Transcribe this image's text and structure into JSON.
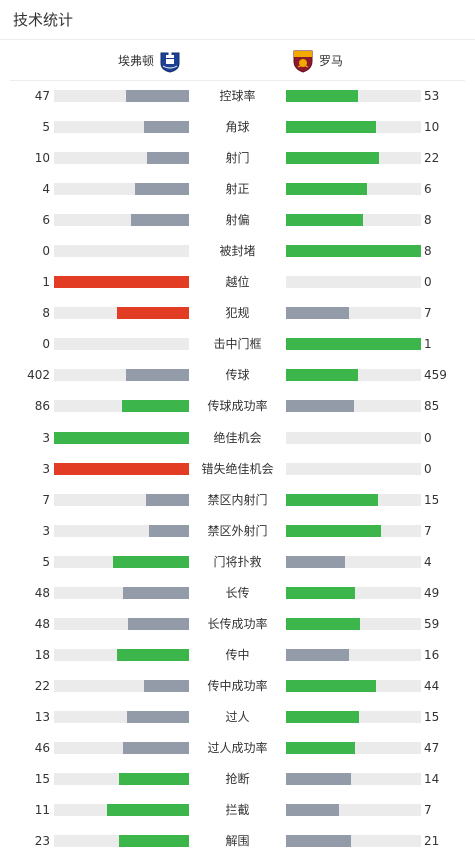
{
  "page": {
    "title": "技术统计"
  },
  "teams": {
    "home": {
      "name": "埃弗顿",
      "crest_icon": "everton-crest-icon"
    },
    "away": {
      "name": "罗马",
      "crest_icon": "roma-crest-icon"
    }
  },
  "colors": {
    "win": "#3cb64a",
    "normal": "#949ba8",
    "alert": "#e23c25",
    "track": "#ebebeb"
  },
  "stats": [
    {
      "label": "控球率",
      "home": "47",
      "away": "53",
      "home_fill": 0.47,
      "away_fill": 0.53,
      "home_color": "normal",
      "away_color": "win"
    },
    {
      "label": "角球",
      "home": "5",
      "away": "10",
      "home_fill": 0.33,
      "away_fill": 0.67,
      "home_color": "normal",
      "away_color": "win"
    },
    {
      "label": "射门",
      "home": "10",
      "away": "22",
      "home_fill": 0.31,
      "away_fill": 0.69,
      "home_color": "normal",
      "away_color": "win"
    },
    {
      "label": "射正",
      "home": "4",
      "away": "6",
      "home_fill": 0.4,
      "away_fill": 0.6,
      "home_color": "normal",
      "away_color": "win"
    },
    {
      "label": "射偏",
      "home": "6",
      "away": "8",
      "home_fill": 0.43,
      "away_fill": 0.57,
      "home_color": "normal",
      "away_color": "win"
    },
    {
      "label": "被封堵",
      "home": "0",
      "away": "8",
      "home_fill": 0,
      "away_fill": 1,
      "home_color": "normal",
      "away_color": "win"
    },
    {
      "label": "越位",
      "home": "1",
      "away": "0",
      "home_fill": 1,
      "away_fill": 0,
      "home_color": "alert",
      "away_color": "normal"
    },
    {
      "label": "犯规",
      "home": "8",
      "away": "7",
      "home_fill": 0.53,
      "away_fill": 0.47,
      "home_color": "alert",
      "away_color": "normal"
    },
    {
      "label": "击中门框",
      "home": "0",
      "away": "1",
      "home_fill": 0,
      "away_fill": 1,
      "home_color": "normal",
      "away_color": "win"
    },
    {
      "label": "传球",
      "home": "402",
      "away": "459",
      "home_fill": 0.47,
      "away_fill": 0.53,
      "home_color": "normal",
      "away_color": "win"
    },
    {
      "label": "传球成功率",
      "home": "86",
      "away": "85",
      "home_fill": 0.5,
      "away_fill": 0.5,
      "home_color": "win",
      "away_color": "normal"
    },
    {
      "label": "绝佳机会",
      "home": "3",
      "away": "0",
      "home_fill": 1,
      "away_fill": 0,
      "home_color": "win",
      "away_color": "normal"
    },
    {
      "label": "错失绝佳机会",
      "home": "3",
      "away": "0",
      "home_fill": 1,
      "away_fill": 0,
      "home_color": "alert",
      "away_color": "normal"
    },
    {
      "label": "禁区内射门",
      "home": "7",
      "away": "15",
      "home_fill": 0.32,
      "away_fill": 0.68,
      "home_color": "normal",
      "away_color": "win"
    },
    {
      "label": "禁区外射门",
      "home": "3",
      "away": "7",
      "home_fill": 0.3,
      "away_fill": 0.7,
      "home_color": "normal",
      "away_color": "win"
    },
    {
      "label": "门将扑救",
      "home": "5",
      "away": "4",
      "home_fill": 0.56,
      "away_fill": 0.44,
      "home_color": "win",
      "away_color": "normal"
    },
    {
      "label": "长传",
      "home": "48",
      "away": "49",
      "home_fill": 0.49,
      "away_fill": 0.51,
      "home_color": "normal",
      "away_color": "win"
    },
    {
      "label": "长传成功率",
      "home": "48",
      "away": "59",
      "home_fill": 0.45,
      "away_fill": 0.55,
      "home_color": "normal",
      "away_color": "win"
    },
    {
      "label": "传中",
      "home": "18",
      "away": "16",
      "home_fill": 0.53,
      "away_fill": 0.47,
      "home_color": "win",
      "away_color": "normal"
    },
    {
      "label": "传中成功率",
      "home": "22",
      "away": "44",
      "home_fill": 0.33,
      "away_fill": 0.67,
      "home_color": "normal",
      "away_color": "win"
    },
    {
      "label": "过人",
      "home": "13",
      "away": "15",
      "home_fill": 0.46,
      "away_fill": 0.54,
      "home_color": "normal",
      "away_color": "win"
    },
    {
      "label": "过人成功率",
      "home": "46",
      "away": "47",
      "home_fill": 0.49,
      "away_fill": 0.51,
      "home_color": "normal",
      "away_color": "win"
    },
    {
      "label": "抢断",
      "home": "15",
      "away": "14",
      "home_fill": 0.52,
      "away_fill": 0.48,
      "home_color": "win",
      "away_color": "normal"
    },
    {
      "label": "拦截",
      "home": "11",
      "away": "7",
      "home_fill": 0.61,
      "away_fill": 0.39,
      "home_color": "win",
      "away_color": "normal"
    },
    {
      "label": "解围",
      "home": "23",
      "away": "21",
      "home_fill": 0.52,
      "away_fill": 0.48,
      "home_color": "win",
      "away_color": "normal"
    }
  ]
}
